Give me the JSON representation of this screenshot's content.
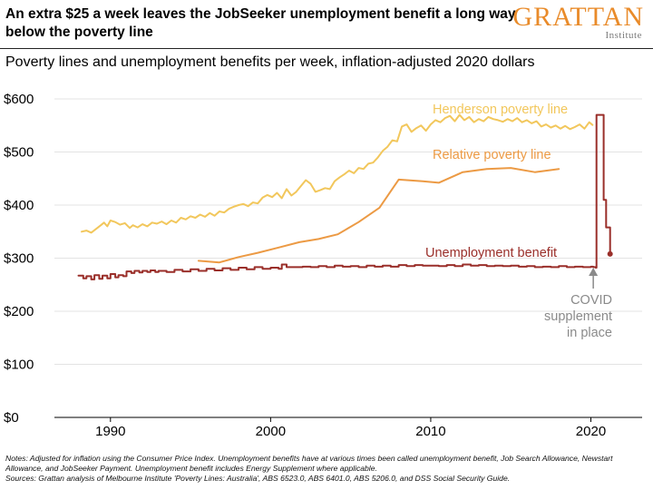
{
  "header": {
    "title": "An extra $25 a week leaves the JobSeeker unemployment benefit a long way below the poverty line",
    "logo_main": "GRATTAN",
    "logo_sub": "Institute",
    "subtitle": "Poverty lines and unemployment benefits per week, inflation-adjusted 2020 dollars"
  },
  "notes": {
    "line1": "Notes: Adjusted for inflation using the Consumer Price Index. Unemployment benefits have at various times been called unemployment benefit, Job Search Allowance, Newstart Allowance, and JobSeeker Payment. Unemployment benefit includes Energy Supplement where applicable.",
    "line2": "Sources: Grattan analysis of Melbourne Institute 'Poverty Lines: Australia', ABS 6523.0, ABS 6401.0, ABS 5206.0, and DSS Social Security Guide."
  },
  "colors": {
    "henderson": "#f2c75c",
    "relative": "#ec9a44",
    "unemployment": "#9a2f2a",
    "annotation": "#8a8a8a",
    "axis": "#000000"
  },
  "chart_data": {
    "type": "line",
    "title": "Poverty lines and unemployment benefits per week, inflation-adjusted 2020 dollars",
    "xlabel": "",
    "ylabel": "",
    "xlim": [
      1986.5,
      2023.2
    ],
    "ylim": [
      0,
      600
    ],
    "x_ticks": [
      1990,
      2000,
      2010,
      2020
    ],
    "x_tick_labels": [
      "1990",
      "2000",
      "2010",
      "2020"
    ],
    "y_ticks": [
      0,
      100,
      200,
      300,
      400,
      500,
      600
    ],
    "y_tick_labels": [
      "$0",
      "$100",
      "$200",
      "$300",
      "$400",
      "$500",
      "$600"
    ],
    "grid": "horizontal",
    "series": [
      {
        "name": "Henderson poverty line",
        "color_key": "henderson",
        "x": [
          1988.2,
          1988.5,
          1988.8,
          1989.1,
          1989.4,
          1989.6,
          1989.8,
          1990.0,
          1990.3,
          1990.6,
          1990.9,
          1991.2,
          1991.4,
          1991.7,
          1992.0,
          1992.3,
          1992.6,
          1992.9,
          1993.2,
          1993.5,
          1993.8,
          1994.1,
          1994.4,
          1994.7,
          1995.0,
          1995.3,
          1995.6,
          1995.9,
          1996.2,
          1996.5,
          1996.8,
          1997.1,
          1997.4,
          1997.7,
          1998.0,
          1998.3,
          1998.6,
          1998.9,
          1999.2,
          1999.5,
          1999.8,
          2000.1,
          2000.4,
          2000.7,
          2001.0,
          2001.3,
          2001.6,
          2001.9,
          2002.2,
          2002.5,
          2002.8,
          2003.1,
          2003.4,
          2003.7,
          2004.0,
          2004.3,
          2004.6,
          2004.9,
          2005.2,
          2005.5,
          2005.8,
          2006.1,
          2006.4,
          2006.7,
          2007.0,
          2007.3,
          2007.6,
          2007.9,
          2008.2,
          2008.5,
          2008.8,
          2009.1,
          2009.4,
          2009.7,
          2010.0,
          2010.3,
          2010.6,
          2010.9,
          2011.2,
          2011.5,
          2011.8,
          2012.1,
          2012.4,
          2012.7,
          2013.0,
          2013.3,
          2013.6,
          2013.9,
          2014.2,
          2014.5,
          2014.8,
          2015.1,
          2015.4,
          2015.7,
          2016.0,
          2016.3,
          2016.6,
          2016.9,
          2017.2,
          2017.5,
          2017.8,
          2018.1,
          2018.4,
          2018.7,
          2019.0,
          2019.3,
          2019.6,
          2019.9,
          2020.1
        ],
        "y": [
          350,
          352,
          348,
          355,
          362,
          367,
          360,
          371,
          368,
          363,
          366,
          357,
          362,
          358,
          364,
          360,
          367,
          365,
          369,
          364,
          371,
          367,
          376,
          373,
          379,
          376,
          382,
          378,
          385,
          380,
          388,
          386,
          393,
          397,
          400,
          402,
          398,
          405,
          403,
          414,
          419,
          415,
          423,
          413,
          430,
          418,
          425,
          436,
          447,
          440,
          425,
          428,
          432,
          430,
          445,
          452,
          458,
          465,
          460,
          470,
          468,
          478,
          480,
          490,
          502,
          510,
          522,
          520,
          548,
          552,
          538,
          545,
          550,
          540,
          552,
          560,
          556,
          564,
          568,
          558,
          570,
          560,
          566,
          556,
          562,
          558,
          566,
          562,
          560,
          557,
          562,
          558,
          564,
          556,
          560,
          554,
          558,
          548,
          552,
          546,
          550,
          544,
          549,
          543,
          547,
          552,
          544,
          556,
          551
        ]
      },
      {
        "name": "Relative poverty line",
        "color_key": "relative",
        "x": [
          1995.5,
          1996.8,
          1998.0,
          1999.2,
          2000.5,
          2001.8,
          2003.0,
          2004.2,
          2005.5,
          2006.8,
          2008.0,
          2009.5,
          2010.5,
          2012.0,
          2013.5,
          2015.0,
          2016.5,
          2018.0
        ],
        "y": [
          295,
          292,
          302,
          310,
          320,
          330,
          336,
          345,
          368,
          395,
          448,
          445,
          442,
          462,
          468,
          470,
          462,
          468
        ]
      },
      {
        "name": "Unemployment benefit",
        "color_key": "unemployment",
        "step": true,
        "x": [
          1988.0,
          1988.3,
          1988.5,
          1988.8,
          1989.0,
          1989.3,
          1989.5,
          1989.8,
          1990.0,
          1990.3,
          1990.5,
          1990.8,
          1991.0,
          1991.3,
          1991.5,
          1991.8,
          1992.0,
          1992.3,
          1992.5,
          1992.8,
          1993.0,
          1993.5,
          1994.0,
          1994.5,
          1995.0,
          1995.5,
          1996.0,
          1996.5,
          1997.0,
          1997.5,
          1998.0,
          1998.5,
          1999.0,
          1999.5,
          2000.0,
          2000.5,
          2000.7,
          2001.0,
          2001.5,
          2002.0,
          2002.5,
          2003.0,
          2003.5,
          2004.0,
          2004.5,
          2005.0,
          2005.5,
          2006.0,
          2006.5,
          2007.0,
          2007.5,
          2008.0,
          2008.5,
          2009.0,
          2009.5,
          2010.0,
          2010.5,
          2011.0,
          2011.5,
          2012.0,
          2012.5,
          2013.0,
          2013.5,
          2014.0,
          2014.5,
          2015.0,
          2015.5,
          2016.0,
          2016.5,
          2017.0,
          2017.5,
          2018.0,
          2018.5,
          2019.0,
          2019.5,
          2020.0,
          2020.15,
          2020.3,
          2020.35,
          2020.65,
          2020.8,
          2020.95,
          2021.2
        ],
        "y": [
          267,
          262,
          266,
          260,
          268,
          261,
          267,
          262,
          270,
          264,
          268,
          266,
          275,
          272,
          276,
          273,
          276,
          274,
          277,
          274,
          276,
          274,
          278,
          275,
          279,
          276,
          280,
          277,
          281,
          278,
          282,
          279,
          283,
          280,
          282,
          280,
          288,
          283,
          283,
          284,
          283,
          285,
          283,
          286,
          284,
          285,
          283,
          286,
          284,
          286,
          284,
          287,
          285,
          287,
          286,
          286,
          285,
          287,
          285,
          288,
          286,
          287,
          285,
          286,
          285,
          286,
          284,
          285,
          283,
          284,
          283,
          285,
          283,
          284,
          283,
          284,
          283,
          282,
          570,
          570,
          410,
          358,
          308
        ]
      }
    ],
    "annotations": [
      {
        "id": "henderson",
        "text": "Henderson poverty line",
        "color_key": "henderson"
      },
      {
        "id": "relative",
        "text": "Relative poverty line",
        "color_key": "relative"
      },
      {
        "id": "unemployment",
        "text": "Unemployment benefit",
        "color_key": "unemployment"
      },
      {
        "id": "covid",
        "lines": [
          "COVID",
          "supplement",
          "in place"
        ],
        "color_key": "annotation"
      }
    ]
  }
}
